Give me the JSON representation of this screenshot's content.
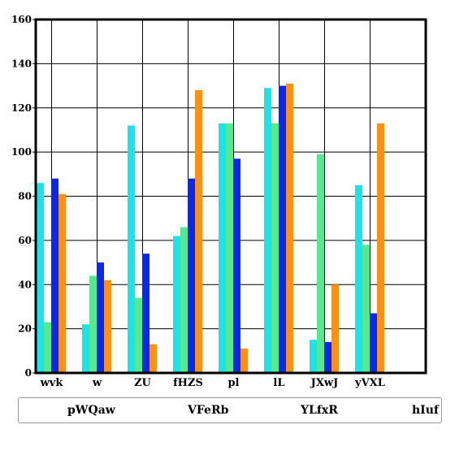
{
  "chart_data": {
    "type": "bar",
    "categories": [
      "wvk",
      "w",
      "ZU",
      "fHZS",
      "pl",
      "lL",
      "JXwJ",
      "yVXL"
    ],
    "series": [
      {
        "name": "pWQaw",
        "color": "#1de2ee",
        "values": [
          86,
          22,
          112,
          62,
          113,
          129,
          15,
          85
        ]
      },
      {
        "name": "VFeRb",
        "color": "#54e98f",
        "values": [
          23,
          44,
          34,
          66,
          113,
          113,
          99,
          58
        ]
      },
      {
        "name": "YLfxR",
        "color": "#0a27ee",
        "values": [
          88,
          50,
          54,
          88,
          97,
          130,
          14,
          27
        ]
      },
      {
        "name": "hIuf",
        "color": "#fa9014",
        "values": [
          81,
          42,
          13,
          128,
          11,
          131,
          40,
          113
        ]
      }
    ],
    "yticks": [
      "0",
      "20",
      "40",
      "60",
      "80",
      "100",
      "120",
      "140",
      "160"
    ],
    "ylim": [
      0,
      160
    ],
    "grid": true,
    "legend": "bottom",
    "title": "",
    "xlabel": "",
    "ylabel": ""
  }
}
